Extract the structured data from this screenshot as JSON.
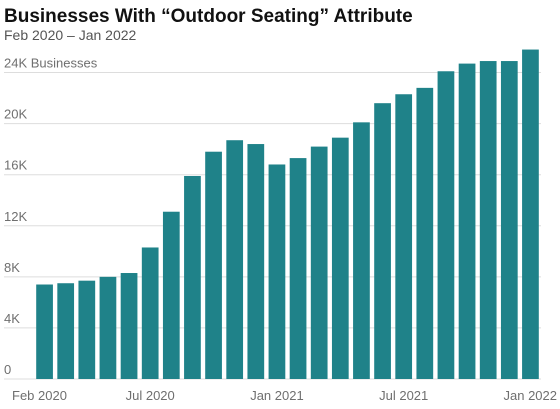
{
  "title": "Businesses With “Outdoor Seating” Attribute",
  "subtitle": "Feb 2020 – Jan 2022",
  "colors": {
    "bar": "#1f8289",
    "grid": "#dddddd",
    "axis_text": "#6f6f6f"
  },
  "chart_data": {
    "type": "bar",
    "title": "Businesses With “Outdoor Seating” Attribute",
    "subtitle": "Feb 2020 – Jan 2022",
    "xlabel": "",
    "ylabel": "",
    "ylim": [
      0,
      26000
    ],
    "grid": true,
    "y_ticks": [
      {
        "value": 0,
        "label": "0"
      },
      {
        "value": 4000,
        "label": "4K"
      },
      {
        "value": 8000,
        "label": "8K"
      },
      {
        "value": 12000,
        "label": "12K"
      },
      {
        "value": 16000,
        "label": "16K"
      },
      {
        "value": 20000,
        "label": "20K"
      },
      {
        "value": 24000,
        "label": "24K Businesses"
      }
    ],
    "x_ticks": [
      {
        "index": 0,
        "label": "Feb 2020"
      },
      {
        "index": 5,
        "label": "Jul 2020"
      },
      {
        "index": 11,
        "label": "Jan 2021"
      },
      {
        "index": 17,
        "label": "Jul 2021"
      },
      {
        "index": 23,
        "label": "Jan 2022"
      }
    ],
    "categories": [
      "Feb 2020",
      "Mar 2020",
      "Apr 2020",
      "May 2020",
      "Jun 2020",
      "Jul 2020",
      "Aug 2020",
      "Sep 2020",
      "Oct 2020",
      "Nov 2020",
      "Dec 2020",
      "Jan 2021",
      "Feb 2021",
      "Mar 2021",
      "Apr 2021",
      "May 2021",
      "Jun 2021",
      "Jul 2021",
      "Aug 2021",
      "Sep 2021",
      "Oct 2021",
      "Nov 2021",
      "Dec 2021",
      "Jan 2022"
    ],
    "values": [
      7400,
      7500,
      7700,
      8000,
      8300,
      10300,
      13100,
      15900,
      17800,
      18700,
      18400,
      16800,
      17300,
      18200,
      18900,
      20100,
      21600,
      22300,
      22800,
      24100,
      24700,
      24900,
      24900,
      25800
    ]
  }
}
